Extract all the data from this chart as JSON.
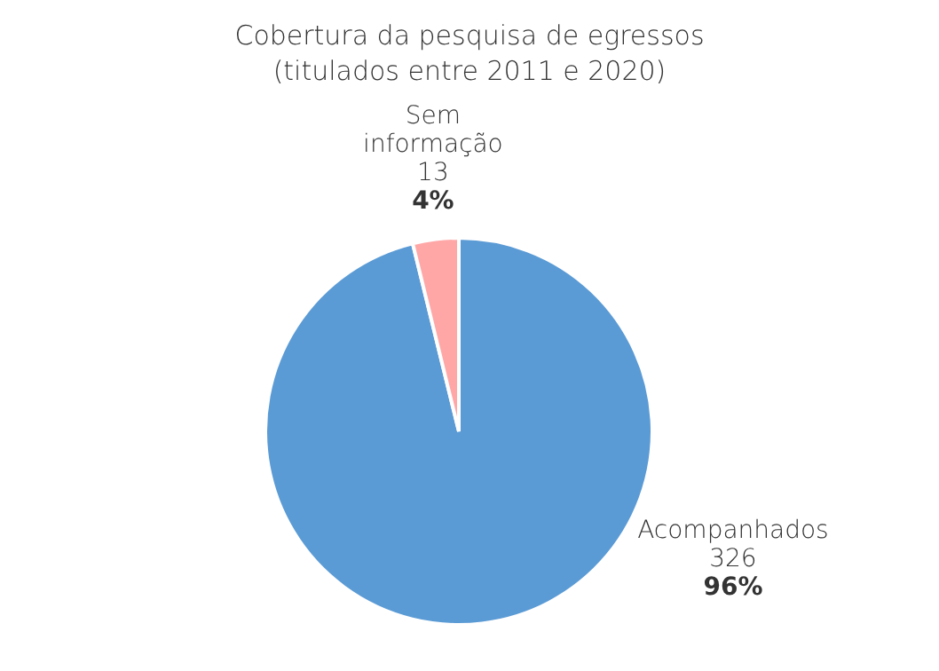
{
  "chart_data": {
    "type": "pie",
    "title": "Cobertura da pesquisa de egressos",
    "subtitle": "(titulados entre 2011 e 2020)",
    "categories": [
      "Acompanhados",
      "Sem informação"
    ],
    "values": [
      326,
      13
    ],
    "colors": [
      "#5b9bd5",
      "#ffa7a7"
    ],
    "data_labels": true,
    "annotations": [
      {
        "text": "96%",
        "x": "Acompanhados"
      },
      {
        "text": "4%",
        "x": "Sem informação"
      }
    ],
    "legend": false
  }
}
